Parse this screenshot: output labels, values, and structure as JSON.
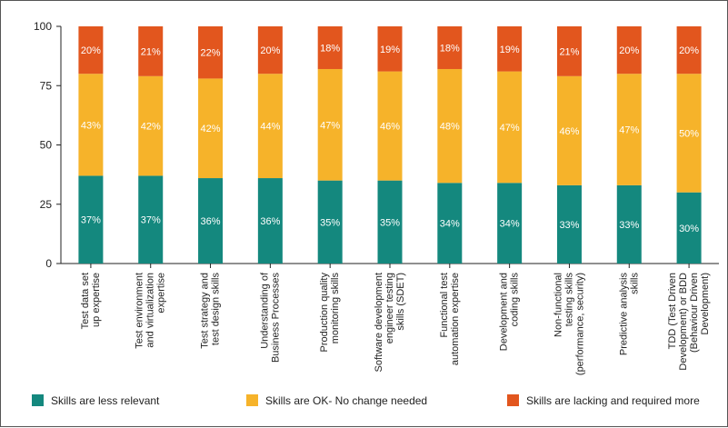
{
  "chart_data": {
    "type": "bar",
    "stacked": true,
    "title": "",
    "xlabel": "",
    "ylabel": "",
    "ylim": [
      0,
      100
    ],
    "yticks": [
      0,
      25,
      50,
      75,
      100
    ],
    "legend_position": "bottom",
    "categories": [
      [
        "Test data set",
        "up expertise"
      ],
      [
        "Test environment",
        "and virtualization",
        "expertise"
      ],
      [
        "Test strategy and",
        "test design skills"
      ],
      [
        "Understanding of",
        "Business Processes"
      ],
      [
        "Production quality",
        "monitoring skills"
      ],
      [
        "Software development",
        "engineer testing",
        "skills (SDET)"
      ],
      [
        "Functional test",
        "automation expertise"
      ],
      [
        "Development and",
        "coding skills"
      ],
      [
        "Non-functional",
        "testing skills",
        "(performance, security)"
      ],
      [
        "Predictive analysis",
        "skills"
      ],
      [
        "TDD (Test Driven",
        "Development) or BDD",
        "(Behaviour Driven",
        "Development)"
      ]
    ],
    "series": [
      {
        "name": "Skills are less relevant",
        "color": "#14887e",
        "values": [
          37,
          37,
          36,
          36,
          35,
          35,
          34,
          34,
          33,
          33,
          30
        ],
        "labels": [
          "37%",
          "37%",
          "36%",
          "36%",
          "35%",
          "35%",
          "34%",
          "34%",
          "33%",
          "33%",
          "30%"
        ]
      },
      {
        "name": "Skills are OK- No change needed",
        "color": "#f6b32a",
        "values": [
          43,
          42,
          42,
          44,
          47,
          46,
          48,
          47,
          46,
          47,
          50
        ],
        "labels": [
          "43%",
          "42%",
          "42%",
          "44%",
          "47%",
          "46%",
          "48%",
          "47%",
          "46%",
          "47%",
          "50%"
        ]
      },
      {
        "name": "Skills are lacking and required more",
        "color": "#e2561e",
        "values": [
          20,
          21,
          22,
          20,
          18,
          19,
          18,
          19,
          21,
          20,
          20
        ],
        "labels": [
          "20%",
          "21%",
          "22%",
          "20%",
          "18%",
          "19%",
          "18%",
          "19%",
          "21%",
          "20%",
          "20%"
        ]
      }
    ]
  }
}
